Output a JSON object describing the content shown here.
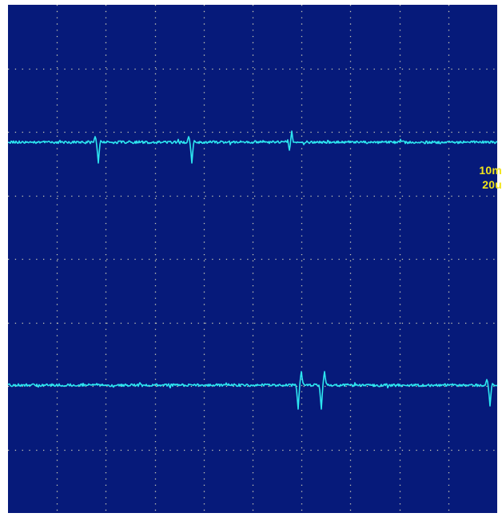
{
  "oscilloscope": {
    "colors": {
      "background": "#061a7a",
      "grid": "#c8c8b4",
      "trace": "#2de6f0",
      "readout": "#f2e51a"
    },
    "grid": {
      "columns": 10,
      "rows": 8,
      "dotted": true
    },
    "readouts": {
      "volts_per_div": "10m",
      "time_per_div": "20u"
    },
    "channels": [
      {
        "trace": "upper",
        "spike_count": 3
      },
      {
        "trace": "lower",
        "spike_count": 3
      }
    ]
  }
}
